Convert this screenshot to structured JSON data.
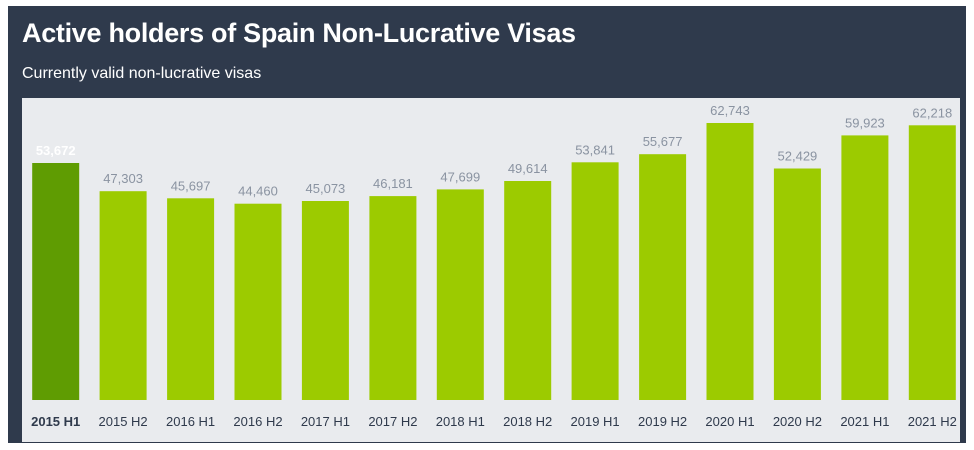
{
  "header": {
    "title": "Active holders of Spain Non-Lucrative Visas",
    "subtitle": "Currently valid non-lucrative visas"
  },
  "colors": {
    "background": "#2f3a4c",
    "plot_background": "#e9ebee",
    "bar": "#9ccb00",
    "bar_highlight": "#5f9c02",
    "value_label": "#8a93a1",
    "value_label_highlight": "#ffffff",
    "tick_label": "#2f3a4c"
  },
  "chart_data": {
    "type": "bar",
    "title": "Active holders of Spain Non-Lucrative Visas",
    "subtitle": "Currently valid non-lucrative visas",
    "categories": [
      "2015 H1",
      "2015 H2",
      "2016 H1",
      "2016 H2",
      "2017 H1",
      "2017 H2",
      "2018 H1",
      "2018 H2",
      "2019 H1",
      "2019 H2",
      "2020 H1",
      "2020 H2",
      "2021 H1",
      "2021 H2"
    ],
    "values": [
      53672,
      47303,
      45697,
      44460,
      45073,
      46181,
      47699,
      49614,
      53841,
      55677,
      62743,
      52429,
      59923,
      62218
    ],
    "value_labels": [
      "53,672",
      "47,303",
      "45,697",
      "44,460",
      "45,073",
      "46,181",
      "47,699",
      "49,614",
      "53,841",
      "55,677",
      "62,743",
      "52,429",
      "59,923",
      "62,218"
    ],
    "highlighted_index": 0,
    "ylim": [
      0,
      62743
    ],
    "xlabel": "",
    "ylabel": "",
    "grid": false
  }
}
